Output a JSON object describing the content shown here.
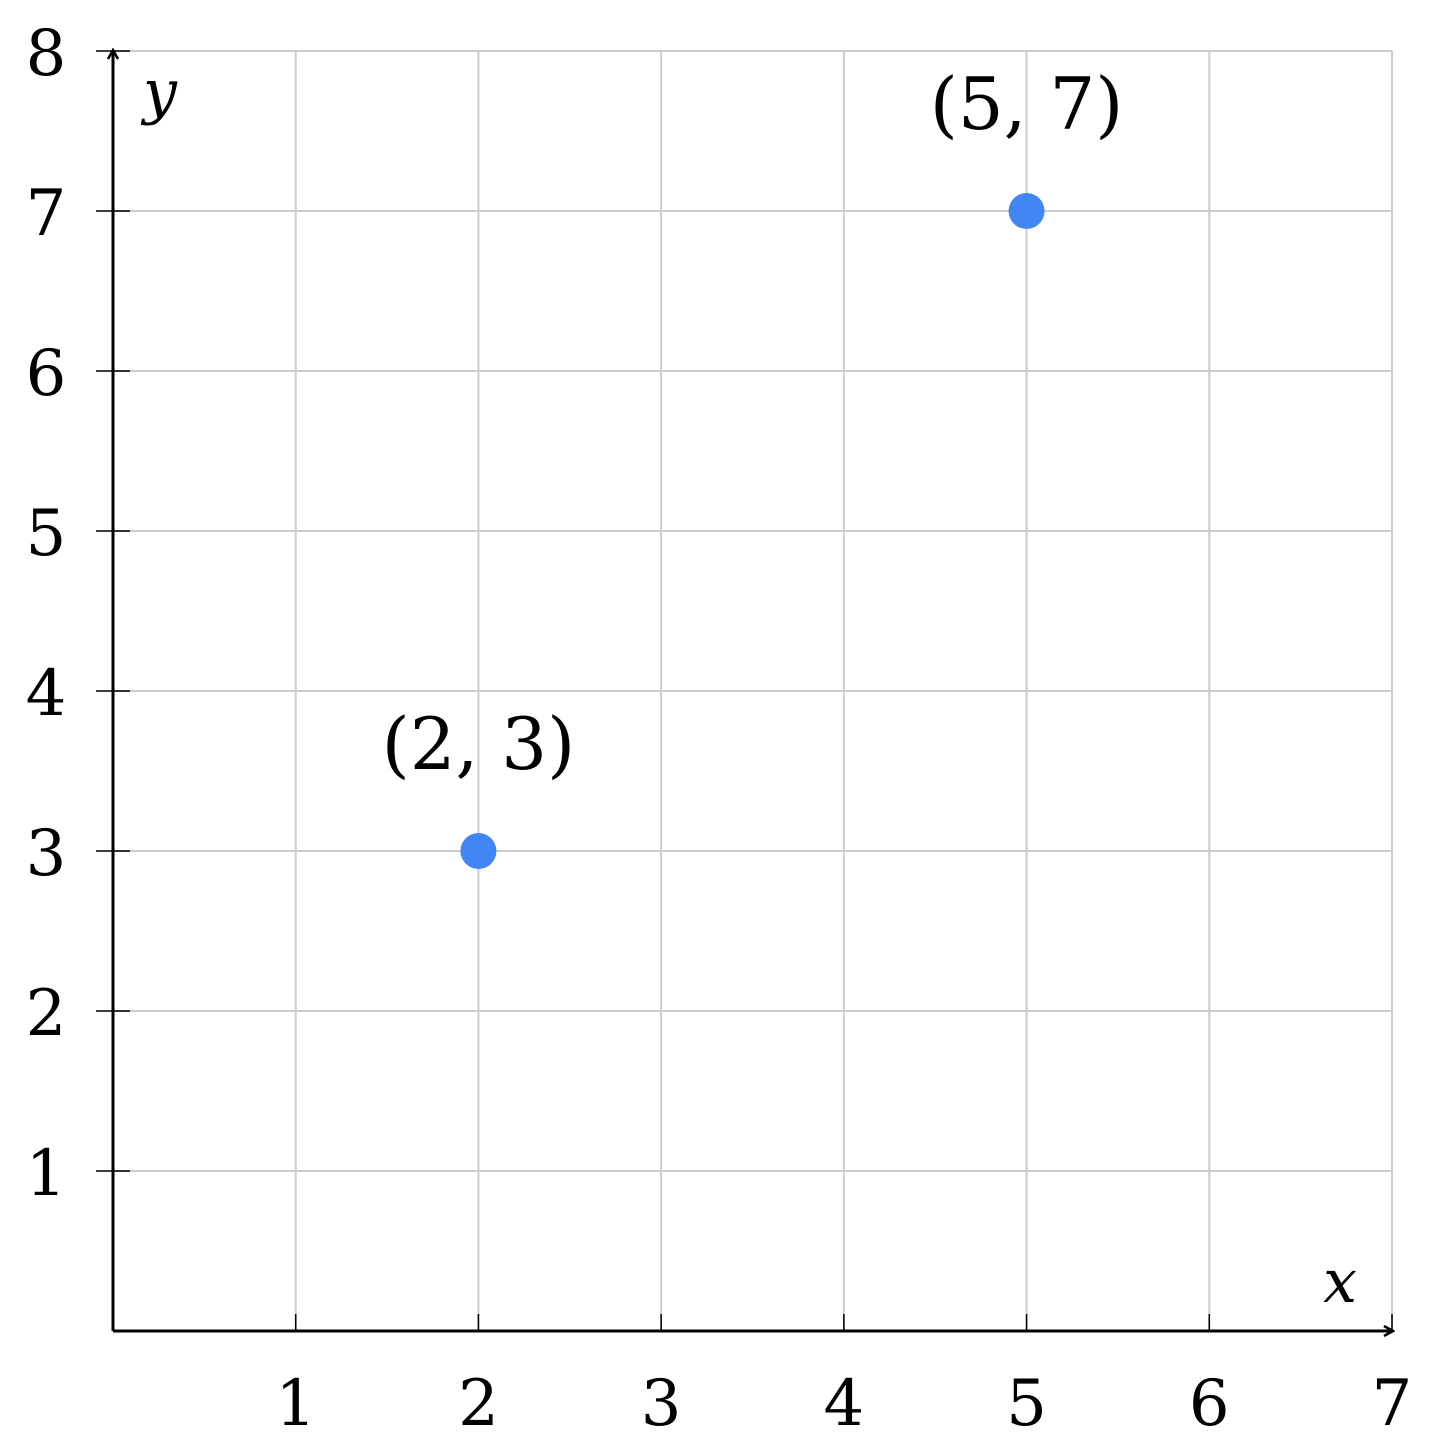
{
  "chart_data": {
    "type": "scatter",
    "title": "",
    "xlabel": "x",
    "ylabel": "y",
    "xlim": [
      0,
      7
    ],
    "ylim": [
      0,
      8
    ],
    "xticks": [
      "1",
      "2",
      "3",
      "4",
      "5",
      "6",
      "7"
    ],
    "yticks": [
      "1",
      "2",
      "3",
      "4",
      "5",
      "6",
      "7",
      "8"
    ],
    "grid": true,
    "point_color": "#4286f4",
    "points": [
      {
        "x": 2,
        "y": 3,
        "label": "(2, 3)"
      },
      {
        "x": 5,
        "y": 7,
        "label": "(5, 7)"
      }
    ]
  }
}
